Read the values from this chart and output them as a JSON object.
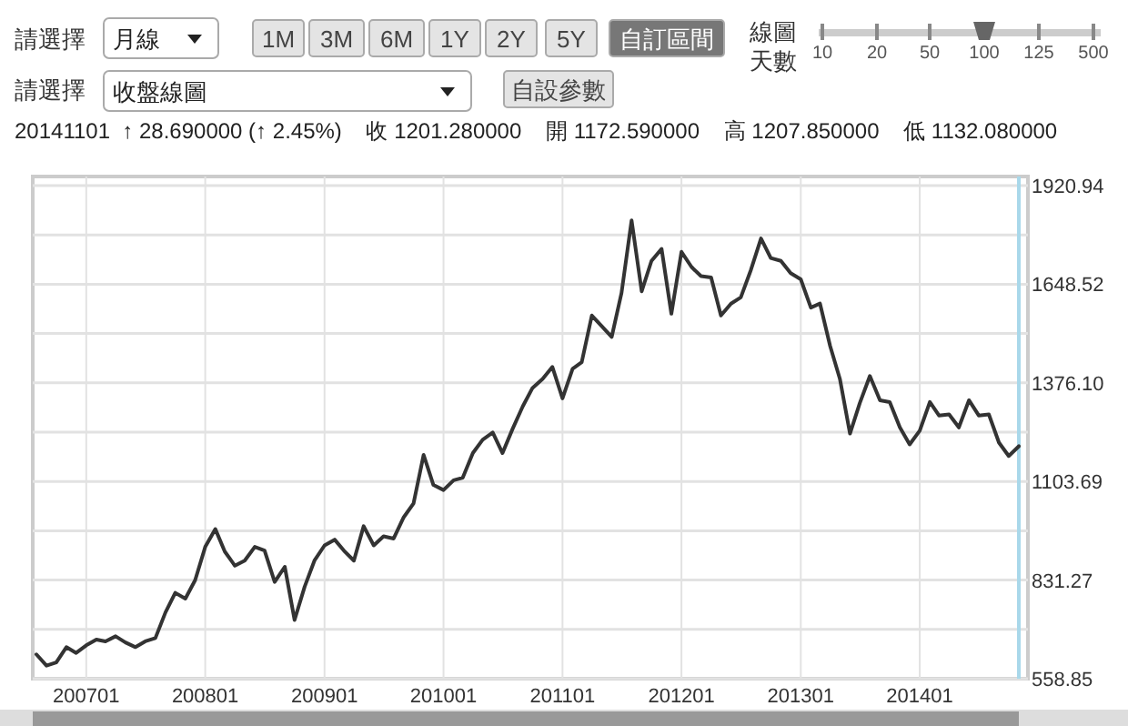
{
  "chart_data": {
    "type": "line",
    "subtitle": "20141101  ↑ 28.690000 (↑ 2.45%)    收 1201.280000    開 1172.590000    高 1207.850000    低 1132.080000",
    "annotations": [
      "請選擇",
      "月線",
      "1M",
      "3M",
      "6M",
      "1Y",
      "2Y",
      "5Y",
      "自訂區間",
      "線圖",
      "天數",
      "10",
      "20",
      "50",
      "100",
      "125",
      "500",
      "請選擇",
      "收盤線圖",
      "自設參數"
    ],
    "x": [
      "2006-08",
      "2006-09",
      "2006-10",
      "2006-11",
      "2006-12",
      "2007-01",
      "2007-02",
      "2007-03",
      "2007-04",
      "2007-05",
      "2007-06",
      "2007-07",
      "2007-08",
      "2007-09",
      "2007-10",
      "2007-11",
      "2007-12",
      "2008-01",
      "2008-02",
      "2008-03",
      "2008-04",
      "2008-05",
      "2008-06",
      "2008-07",
      "2008-08",
      "2008-09",
      "2008-10",
      "2008-11",
      "2008-12",
      "2009-01",
      "2009-02",
      "2009-03",
      "2009-04",
      "2009-05",
      "2009-06",
      "2009-07",
      "2009-08",
      "2009-09",
      "2009-10",
      "2009-11",
      "2009-12",
      "2010-01",
      "2010-02",
      "2010-03",
      "2010-04",
      "2010-05",
      "2010-06",
      "2010-07",
      "2010-08",
      "2010-09",
      "2010-10",
      "2010-11",
      "2010-12",
      "2011-01",
      "2011-02",
      "2011-03",
      "2011-04",
      "2011-05",
      "2011-06",
      "2011-07",
      "2011-08",
      "2011-09",
      "2011-10",
      "2011-11",
      "2011-12",
      "2012-01",
      "2012-02",
      "2012-03",
      "2012-04",
      "2012-05",
      "2012-06",
      "2012-07",
      "2012-08",
      "2012-09",
      "2012-10",
      "2012-11",
      "2012-12",
      "2013-01",
      "2013-02",
      "2013-03",
      "2013-04",
      "2013-05",
      "2013-06",
      "2013-07",
      "2013-08",
      "2013-09",
      "2013-10",
      "2013-11",
      "2013-12",
      "2014-01",
      "2014-02",
      "2014-03",
      "2014-04",
      "2014-05",
      "2014-06",
      "2014-07",
      "2014-08",
      "2014-09",
      "2014-10",
      "2014-11"
    ],
    "series": [
      {
        "color": "#333333",
        "values": [
          626,
          595,
          604,
          646,
          630,
          651,
          667,
          662,
          676,
          659,
          646,
          662,
          671,
          742,
          796,
          780,
          831,
          923,
          972,
          910,
          871,
          885,
          923,
          913,
          826,
          868,
          721,
          813,
          885,
          927,
          943,
          913,
          885,
          980,
          927,
          952,
          946,
          1005,
          1043,
          1177,
          1094,
          1080,
          1107,
          1114,
          1182,
          1219,
          1239,
          1182,
          1249,
          1311,
          1362,
          1387,
          1420,
          1333,
          1415,
          1433,
          1562,
          1533,
          1503,
          1624,
          1825,
          1629,
          1713,
          1746,
          1567,
          1738,
          1696,
          1671,
          1667,
          1562,
          1595,
          1612,
          1688,
          1775,
          1721,
          1713,
          1679,
          1662,
          1584,
          1595,
          1478,
          1387,
          1236,
          1320,
          1395,
          1328,
          1323,
          1253,
          1206,
          1244,
          1323,
          1286,
          1289,
          1253,
          1328,
          1286,
          1289,
          1211,
          1174,
          1201
        ]
      }
    ],
    "xlim": [
      "2006-08",
      "2014-11"
    ],
    "xticks": [
      {
        "value": "2007-01",
        "label": "200701"
      },
      {
        "value": "2008-01",
        "label": "200801"
      },
      {
        "value": "2009-01",
        "label": "200901"
      },
      {
        "value": "2010-01",
        "label": "201001"
      },
      {
        "value": "2011-01",
        "label": "201101"
      },
      {
        "value": "2012-01",
        "label": "201201"
      },
      {
        "value": "2013-01",
        "label": "201301"
      },
      {
        "value": "2014-01",
        "label": "201401"
      }
    ],
    "ylim": [
      558.85,
      1920.94
    ],
    "yticks": [
      558.85,
      {
        "value": 695.06,
        "label": null
      },
      831.27,
      {
        "value": 967.48,
        "label": null
      },
      1103.69,
      {
        "value": 1239.9,
        "label": null
      },
      {
        "value": 1376.1,
        "label": "1376.10"
      },
      {
        "value": 1512.31,
        "label": null
      },
      1648.52,
      {
        "value": 1784.73,
        "label": null
      },
      1920.94
    ],
    "ref_lines": [
      {
        "axis": "x",
        "value": "2014-11",
        "color": "#a9d8ea"
      }
    ],
    "grid": true,
    "marker": "none",
    "line_style": "solid"
  }
}
